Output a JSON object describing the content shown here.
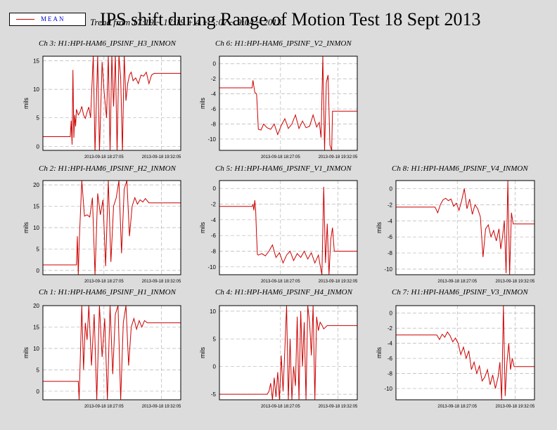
{
  "legend": {
    "label": "MEAN",
    "color": "#cc0000"
  },
  "title": "IPS shift during Range of Motion Test 18 Sept 2013",
  "subtitle": "Trend from 17:19 ~ 17:19 + 4 + 5:07 ~ 9:04 ~ 2013",
  "chart_data": [
    {
      "type": "line",
      "title": "Ch 3: H1:HPI-HAM6_IPSINF_H3_INMON",
      "ylabel": "mils",
      "xlim": [
        "2013-09-18 17:18",
        "2013-09-18 19:54"
      ],
      "xticks": [
        "2013-09-18 18:27:05",
        "2013-09-18 19:32:05"
      ],
      "ylim": [
        -0.7,
        15.8
      ],
      "yticks": [
        0,
        5,
        10,
        15
      ],
      "grid": true,
      "series": [
        {
          "color": "#cc0000",
          "x": [
            "2013-09-18 17:18",
            "2013-09-18 17:49",
            "2013-09-18 17:50",
            "2013-09-18 17:51",
            "2013-09-18 17:52",
            "2013-09-18 17:53",
            "2013-09-18 17:54",
            "2013-09-18 17:55",
            "2013-09-18 17:56",
            "2013-09-18 17:58",
            "2013-09-18 18:00",
            "2013-09-18 18:02",
            "2013-09-18 18:04",
            "2013-09-18 18:06",
            "2013-09-18 18:08",
            "2013-09-18 18:10",
            "2013-09-18 18:12",
            "2013-09-18 18:15",
            "2013-09-18 18:17",
            "2013-09-18 18:20",
            "2013-09-18 18:22",
            "2013-09-18 18:25",
            "2013-09-18 18:27",
            "2013-09-18 18:30",
            "2013-09-18 18:32",
            "2013-09-18 18:34",
            "2013-09-18 18:36",
            "2013-09-18 18:38",
            "2013-09-18 18:40",
            "2013-09-18 18:42",
            "2013-09-18 18:44",
            "2013-09-18 18:46",
            "2013-09-18 18:48",
            "2013-09-18 18:50",
            "2013-09-18 18:52",
            "2013-09-18 18:54",
            "2013-09-18 18:56",
            "2013-09-18 18:58",
            "2013-09-18 19:00",
            "2013-09-18 19:03",
            "2013-09-18 19:06",
            "2013-09-18 19:09",
            "2013-09-18 19:12",
            "2013-09-18 19:15",
            "2013-09-18 19:18",
            "2013-09-18 19:21",
            "2013-09-18 19:24",
            "2013-09-18 19:27",
            "2013-09-18 19:30",
            "2013-09-18 19:54"
          ],
          "y": [
            1.7,
            1.7,
            4.5,
            0.3,
            13.4,
            1.5,
            5.5,
            3.5,
            6.5,
            5.5,
            6.0,
            7.0,
            5.5,
            4.9,
            6.0,
            6.9,
            5.0,
            16,
            -1,
            16,
            -1,
            14.8,
            10.0,
            5.0,
            16,
            -1,
            16,
            7.0,
            16,
            -1,
            16,
            12.0,
            -1,
            16,
            8.0,
            11.0,
            12.5,
            13.0,
            11.5,
            12.0,
            11.0,
            12.5,
            12.3,
            13.0,
            11.0,
            12.5,
            12.8,
            12.8,
            12.8,
            12.8
          ]
        }
      ]
    },
    {
      "type": "line",
      "title": "Ch 6: H1:HPI-HAM6_IPSINF_V2_INMON",
      "ylabel": "mils",
      "xlim": [
        "2013-09-18 17:18",
        "2013-09-18 19:54"
      ],
      "xticks": [
        "2013-09-18 18:27:05",
        "2013-09-18 19:32:05"
      ],
      "ylim": [
        -11.5,
        1.0
      ],
      "yticks": [
        0,
        -2,
        -4,
        -6,
        -8,
        -10
      ],
      "grid": true,
      "series": [
        {
          "color": "#cc0000",
          "x": [
            "2013-09-18 17:18",
            "2013-09-18 17:55",
            "2013-09-18 17:56",
            "2013-09-18 17:58",
            "2013-09-18 18:00",
            "2013-09-18 18:01",
            "2013-09-18 18:02",
            "2013-09-18 18:05",
            "2013-09-18 18:08",
            "2013-09-18 18:12",
            "2013-09-18 18:16",
            "2013-09-18 18:20",
            "2013-09-18 18:24",
            "2013-09-18 18:28",
            "2013-09-18 18:32",
            "2013-09-18 18:36",
            "2013-09-18 18:40",
            "2013-09-18 18:44",
            "2013-09-18 18:48",
            "2013-09-18 18:52",
            "2013-09-18 18:56",
            "2013-09-18 19:00",
            "2013-09-18 19:04",
            "2013-09-18 19:08",
            "2013-09-18 19:11",
            "2013-09-18 19:13",
            "2013-09-18 19:15",
            "2013-09-18 19:17",
            "2013-09-18 19:19",
            "2013-09-18 19:21",
            "2013-09-18 19:23",
            "2013-09-18 19:25",
            "2013-09-18 19:26",
            "2013-09-18 19:54"
          ],
          "y": [
            -3.2,
            -3.2,
            -2.2,
            -3.8,
            -4.0,
            -6.0,
            -8.7,
            -8.8,
            -8.0,
            -8.5,
            -8.7,
            -8.0,
            -9.4,
            -8.2,
            -7.3,
            -8.6,
            -8.0,
            -6.8,
            -8.6,
            -7.6,
            -8.5,
            -8.3,
            -6.8,
            -8.4,
            -7.8,
            -9.8,
            1.0,
            -11.5,
            -2.5,
            -1.5,
            -10.8,
            -11.5,
            -6.3,
            -6.3
          ]
        }
      ]
    },
    {
      "type": "line",
      "title": "Ch 2: H1:HPI-HAM6_IPSINF_H2_INMON",
      "ylabel": "mils",
      "xlim": [
        "2013-09-18 17:18",
        "2013-09-18 19:54"
      ],
      "xticks": [
        "2013-09-18 18:27:05",
        "2013-09-18 19:32:05"
      ],
      "ylim": [
        -1.0,
        21.0
      ],
      "yticks": [
        0,
        5,
        10,
        15,
        20
      ],
      "grid": true,
      "series": [
        {
          "color": "#cc0000",
          "x": [
            "2013-09-18 17:18",
            "2013-09-18 17:56",
            "2013-09-18 17:57",
            "2013-09-18 17:58",
            "2013-09-18 17:59",
            "2013-09-18 18:02",
            "2013-09-18 18:05",
            "2013-09-18 18:08",
            "2013-09-18 18:11",
            "2013-09-18 18:14",
            "2013-09-18 18:17",
            "2013-09-18 18:20",
            "2013-09-18 18:23",
            "2013-09-18 18:26",
            "2013-09-18 18:29",
            "2013-09-18 18:32",
            "2013-09-18 18:35",
            "2013-09-18 18:38",
            "2013-09-18 18:41",
            "2013-09-18 18:44",
            "2013-09-18 18:47",
            "2013-09-18 18:50",
            "2013-09-18 18:53",
            "2013-09-18 18:56",
            "2013-09-18 18:59",
            "2013-09-18 19:02",
            "2013-09-18 19:05",
            "2013-09-18 19:08",
            "2013-09-18 19:11",
            "2013-09-18 19:14",
            "2013-09-18 19:18",
            "2013-09-18 19:54"
          ],
          "y": [
            1.3,
            1.3,
            8.0,
            -1.0,
            6.0,
            21,
            12.7,
            13.0,
            12.5,
            17.0,
            -1.0,
            18.0,
            13.0,
            16.5,
            1.0,
            21,
            2.0,
            15.0,
            17.0,
            21,
            4.0,
            19.0,
            21,
            8.0,
            15.0,
            17.0,
            15.5,
            16.5,
            16.0,
            16.8,
            15.8,
            15.8
          ]
        }
      ]
    },
    {
      "type": "line",
      "title": "Ch 5: H1:HPI-HAM6_IPSINF_V1_INMON",
      "ylabel": "mils",
      "xlim": [
        "2013-09-18 17:18",
        "2013-09-18 19:54"
      ],
      "xticks": [
        "2013-09-18 18:27:05",
        "2013-09-18 19:32:05"
      ],
      "ylim": [
        -11.0,
        1.0
      ],
      "yticks": [
        0,
        -2,
        -4,
        -6,
        -8,
        -10
      ],
      "grid": true,
      "series": [
        {
          "color": "#cc0000",
          "x": [
            "2013-09-18 17:18",
            "2013-09-18 17:55",
            "2013-09-18 17:56",
            "2013-09-18 17:57",
            "2013-09-18 17:58",
            "2013-09-18 17:59",
            "2013-09-18 18:00",
            "2013-09-18 18:01",
            "2013-09-18 18:02",
            "2013-09-18 18:06",
            "2013-09-18 18:10",
            "2013-09-18 18:14",
            "2013-09-18 18:18",
            "2013-09-18 18:22",
            "2013-09-18 18:26",
            "2013-09-18 18:30",
            "2013-09-18 18:34",
            "2013-09-18 18:38",
            "2013-09-18 18:42",
            "2013-09-18 18:46",
            "2013-09-18 18:50",
            "2013-09-18 18:54",
            "2013-09-18 18:58",
            "2013-09-18 19:02",
            "2013-09-18 19:06",
            "2013-09-18 19:10",
            "2013-09-18 19:12",
            "2013-09-18 19:14",
            "2013-09-18 19:16",
            "2013-09-18 19:18",
            "2013-09-18 19:20",
            "2013-09-18 19:22",
            "2013-09-18 19:24",
            "2013-09-18 19:26",
            "2013-09-18 19:28",
            "2013-09-18 19:54"
          ],
          "y": [
            -2.3,
            -2.3,
            -2.0,
            -2.8,
            -1.5,
            -2.7,
            -6.0,
            -8.4,
            -8.5,
            -8.3,
            -8.6,
            -8.0,
            -7.2,
            -8.8,
            -8.2,
            -9.5,
            -8.5,
            -8.0,
            -9.2,
            -8.3,
            -8.8,
            -8.0,
            -9.0,
            -8.2,
            -9.5,
            -8.5,
            -9.8,
            -11,
            0.2,
            -9.5,
            -4.5,
            -11,
            -6.5,
            -5.0,
            -8.0,
            -8.0
          ]
        }
      ]
    },
    {
      "type": "line",
      "title": "Ch 8: H1:HPI-HAM6_IPSINF_V4_INMON",
      "ylabel": "mils",
      "xlim": [
        "2013-09-18 17:18",
        "2013-09-18 19:54"
      ],
      "xticks": [
        "2013-09-18 18:27:05",
        "2013-09-18 19:32:05"
      ],
      "ylim": [
        -10.7,
        1.0
      ],
      "yticks": [
        0,
        -2,
        -4,
        -6,
        -8,
        -10
      ],
      "grid": true,
      "series": [
        {
          "color": "#cc0000",
          "x": [
            "2013-09-18 17:18",
            "2013-09-18 18:02",
            "2013-09-18 18:05",
            "2013-09-18 18:08",
            "2013-09-18 18:11",
            "2013-09-18 18:14",
            "2013-09-18 18:17",
            "2013-09-18 18:20",
            "2013-09-18 18:23",
            "2013-09-18 18:26",
            "2013-09-18 18:29",
            "2013-09-18 18:32",
            "2013-09-18 18:35",
            "2013-09-18 18:38",
            "2013-09-18 18:41",
            "2013-09-18 18:44",
            "2013-09-18 18:47",
            "2013-09-18 18:50",
            "2013-09-18 18:53",
            "2013-09-18 18:56",
            "2013-09-18 18:59",
            "2013-09-18 19:02",
            "2013-09-18 19:05",
            "2013-09-18 19:08",
            "2013-09-18 19:11",
            "2013-09-18 19:14",
            "2013-09-18 19:16",
            "2013-09-18 19:18",
            "2013-09-18 19:20",
            "2013-09-18 19:22",
            "2013-09-18 19:24",
            "2013-09-18 19:26",
            "2013-09-18 19:28",
            "2013-09-18 19:30",
            "2013-09-18 19:54"
          ],
          "y": [
            -2.3,
            -2.3,
            -3.0,
            -2.0,
            -1.4,
            -1.2,
            -1.5,
            -1.3,
            -2.2,
            -1.8,
            -2.7,
            -1.5,
            0.0,
            -2.5,
            -1.3,
            -3.2,
            -2.0,
            -2.5,
            -3.5,
            -8.5,
            -5.0,
            -4.5,
            -6.0,
            -5.2,
            -6.5,
            -5.0,
            -7.5,
            -6.0,
            -4.0,
            -10.5,
            1.0,
            -10.7,
            -3.0,
            -4.4,
            -4.4
          ]
        }
      ]
    },
    {
      "type": "line",
      "title": "Ch 1: H1:HPI-HAM6_IPSINF_H1_INMON",
      "ylabel": "mils",
      "xlim": [
        "2013-09-18 17:18",
        "2013-09-18 19:54"
      ],
      "xticks": [
        "2013-09-18 18:27:05",
        "2013-09-18 19:32:05"
      ],
      "ylim": [
        -2.0,
        20.0
      ],
      "yticks": [
        0,
        5,
        10,
        15,
        20
      ],
      "grid": true,
      "series": [
        {
          "color": "#cc0000",
          "x": [
            "2013-09-18 17:18",
            "2013-09-18 17:58",
            "2013-09-18 17:59",
            "2013-09-18 18:02",
            "2013-09-18 18:04",
            "2013-09-18 18:06",
            "2013-09-18 18:08",
            "2013-09-18 18:10",
            "2013-09-18 18:13",
            "2013-09-18 18:16",
            "2013-09-18 18:19",
            "2013-09-18 18:22",
            "2013-09-18 18:25",
            "2013-09-18 18:28",
            "2013-09-18 18:31",
            "2013-09-18 18:34",
            "2013-09-18 18:37",
            "2013-09-18 18:40",
            "2013-09-18 18:43",
            "2013-09-18 18:46",
            "2013-09-18 18:49",
            "2013-09-18 18:52",
            "2013-09-18 18:55",
            "2013-09-18 18:58",
            "2013-09-18 19:01",
            "2013-09-18 19:04",
            "2013-09-18 19:07",
            "2013-09-18 19:10",
            "2013-09-18 19:13",
            "2013-09-18 19:16",
            "2013-09-18 19:54"
          ],
          "y": [
            2.3,
            2.3,
            -2,
            20,
            5.0,
            16.0,
            12.0,
            20,
            6.0,
            18.0,
            -2,
            20,
            8.0,
            17.0,
            -2,
            20,
            4.0,
            18.0,
            20,
            -2,
            16.0,
            20,
            6.0,
            15.0,
            17.0,
            14.5,
            16.5,
            15.0,
            16.5,
            16.0,
            16.0
          ]
        }
      ]
    },
    {
      "type": "line",
      "title": "Ch 4: H1:HPI-HAM6_IPSINF_H4_INMON",
      "ylabel": "mils",
      "xlim": [
        "2013-09-18 17:18",
        "2013-09-18 19:54"
      ],
      "xticks": [
        "2013-09-18 18:27:05",
        "2013-09-18 19:32:05"
      ],
      "ylim": [
        -6.0,
        11.0
      ],
      "yticks": [
        10,
        5,
        0,
        -5
      ],
      "grid": true,
      "series": [
        {
          "color": "#cc0000",
          "x": [
            "2013-09-18 17:18",
            "2013-09-18 18:12",
            "2013-09-18 18:14",
            "2013-09-18 18:16",
            "2013-09-18 18:18",
            "2013-09-18 18:20",
            "2013-09-18 18:22",
            "2013-09-18 18:24",
            "2013-09-18 18:26",
            "2013-09-18 18:28",
            "2013-09-18 18:30",
            "2013-09-18 18:32",
            "2013-09-18 18:34",
            "2013-09-18 18:36",
            "2013-09-18 18:38",
            "2013-09-18 18:40",
            "2013-09-18 18:42",
            "2013-09-18 18:44",
            "2013-09-18 18:46",
            "2013-09-18 18:48",
            "2013-09-18 18:50",
            "2013-09-18 18:52",
            "2013-09-18 18:54",
            "2013-09-18 18:56",
            "2013-09-18 18:58",
            "2013-09-18 19:00",
            "2013-09-18 19:02",
            "2013-09-18 19:04",
            "2013-09-18 19:06",
            "2013-09-18 19:08",
            "2013-09-18 19:10",
            "2013-09-18 19:12",
            "2013-09-18 19:14",
            "2013-09-18 19:16",
            "2013-09-18 19:20",
            "2013-09-18 19:54"
          ],
          "y": [
            -5.0,
            -5.0,
            -4.5,
            -3.0,
            -6.0,
            -2.0,
            -5.5,
            -1.0,
            -6.0,
            2.0,
            -4.5,
            3.0,
            11.0,
            -6.0,
            5.0,
            -6.0,
            0.0,
            -3.5,
            9.0,
            -6.0,
            10.0,
            0.0,
            8.0,
            -6.0,
            11.0,
            8.0,
            2.0,
            11.0,
            -6.0,
            9.0,
            6.5,
            8.0,
            7.5,
            6.8,
            7.4,
            7.4
          ]
        }
      ]
    },
    {
      "type": "line",
      "title": "Ch 7: H1:HPI-HAM6_IPSINF_V3_INMON",
      "ylabel": "mils",
      "xlim": [
        "2013-09-18 17:18",
        "2013-09-18 19:54"
      ],
      "xticks": [
        "2013-09-18 18:27:05",
        "2013-09-18 19:32:05"
      ],
      "ylim": [
        -11.5,
        1.0
      ],
      "yticks": [
        0,
        -2,
        -4,
        -6,
        -8,
        -10
      ],
      "grid": true,
      "series": [
        {
          "color": "#cc0000",
          "x": [
            "2013-09-18 17:18",
            "2013-09-18 18:04",
            "2013-09-18 18:07",
            "2013-09-18 18:10",
            "2013-09-18 18:13",
            "2013-09-18 18:16",
            "2013-09-18 18:19",
            "2013-09-18 18:22",
            "2013-09-18 18:25",
            "2013-09-18 18:28",
            "2013-09-18 18:31",
            "2013-09-18 18:34",
            "2013-09-18 18:37",
            "2013-09-18 18:40",
            "2013-09-18 18:43",
            "2013-09-18 18:46",
            "2013-09-18 18:49",
            "2013-09-18 18:52",
            "2013-09-18 18:55",
            "2013-09-18 18:58",
            "2013-09-18 19:01",
            "2013-09-18 19:04",
            "2013-09-18 19:07",
            "2013-09-18 19:10",
            "2013-09-18 19:13",
            "2013-09-18 19:15",
            "2013-09-18 19:17",
            "2013-09-18 19:19",
            "2013-09-18 19:21",
            "2013-09-18 19:23",
            "2013-09-18 19:25",
            "2013-09-18 19:27",
            "2013-09-18 19:29",
            "2013-09-18 19:31",
            "2013-09-18 19:54"
          ],
          "y": [
            -2.9,
            -2.9,
            -3.5,
            -2.8,
            -3.2,
            -2.5,
            -3.0,
            -3.8,
            -3.3,
            -4.0,
            -5.5,
            -4.5,
            -6.0,
            -5.0,
            -7.5,
            -6.5,
            -8.0,
            -7.0,
            -9.0,
            -8.5,
            -7.5,
            -9.5,
            -8.2,
            -10.0,
            -8.5,
            -6.5,
            -11.5,
            1.0,
            -11.0,
            -6.5,
            -4.0,
            -7.5,
            -6.0,
            -7.1,
            -7.1
          ]
        }
      ]
    }
  ]
}
